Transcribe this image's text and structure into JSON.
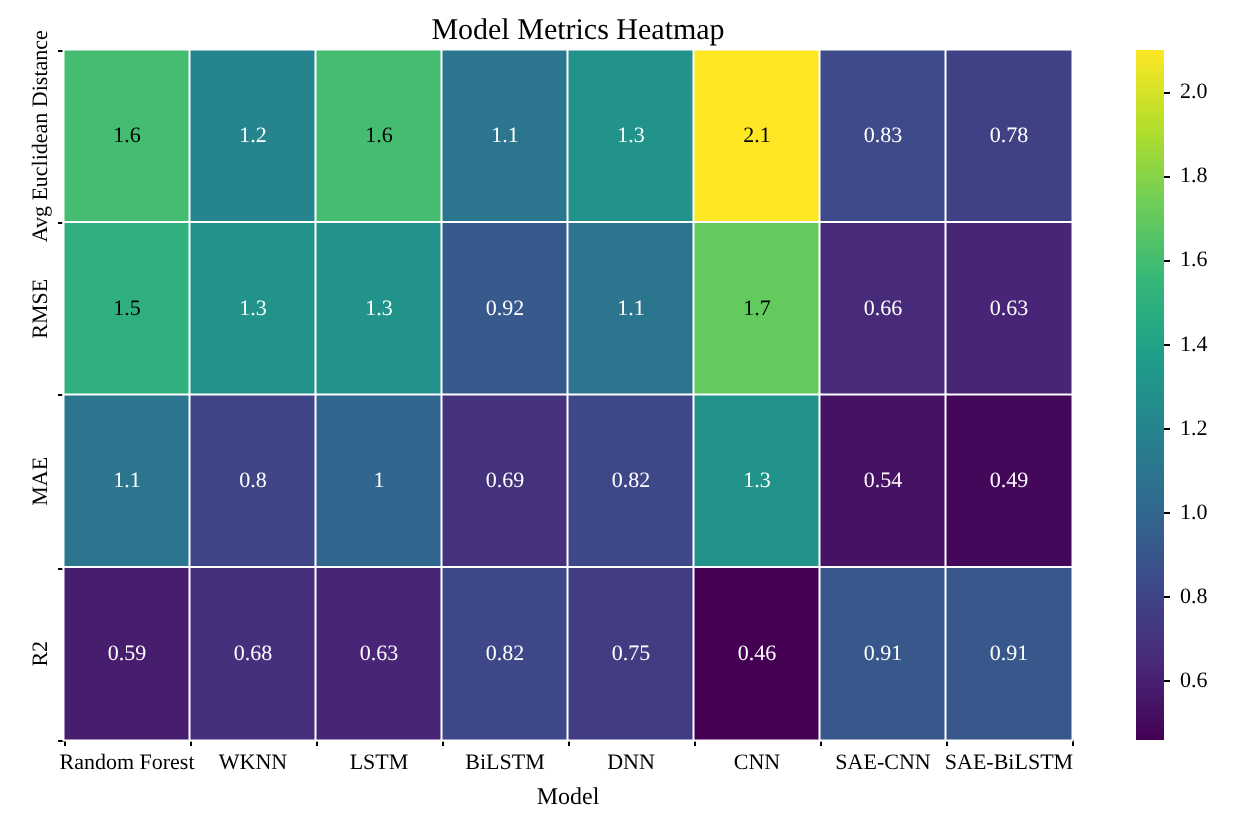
{
  "chart_data": {
    "type": "heatmap",
    "title": "Model Metrics Heatmap",
    "xlabel": "Model",
    "categories": [
      "Random Forest",
      "WKNN",
      "LSTM",
      "BiLSTM",
      "DNN",
      "CNN",
      "SAE-CNN",
      "SAE-BiLSTM"
    ],
    "y_categories": [
      "Avg Euclidean Distance",
      "RMSE",
      "MAE",
      "R2"
    ],
    "cells": [
      [
        1.6,
        1.2,
        1.6,
        1.1,
        1.3,
        2.1,
        0.83,
        0.78
      ],
      [
        1.5,
        1.3,
        1.3,
        0.92,
        1.1,
        1.7,
        0.66,
        0.63
      ],
      [
        1.1,
        0.8,
        1,
        0.69,
        0.82,
        1.3,
        0.54,
        0.49
      ],
      [
        0.59,
        0.68,
        0.63,
        0.82,
        0.75,
        0.46,
        0.91,
        0.91
      ]
    ],
    "clim": [
      0.46,
      2.1
    ],
    "cticks": [
      0.6,
      0.8,
      {
        "value": 1,
        "label": "1.0"
      },
      1.2,
      1.4,
      1.6,
      1.8,
      {
        "value": 2,
        "label": "2.0"
      }
    ],
    "data_labels": true,
    "grid": false
  }
}
